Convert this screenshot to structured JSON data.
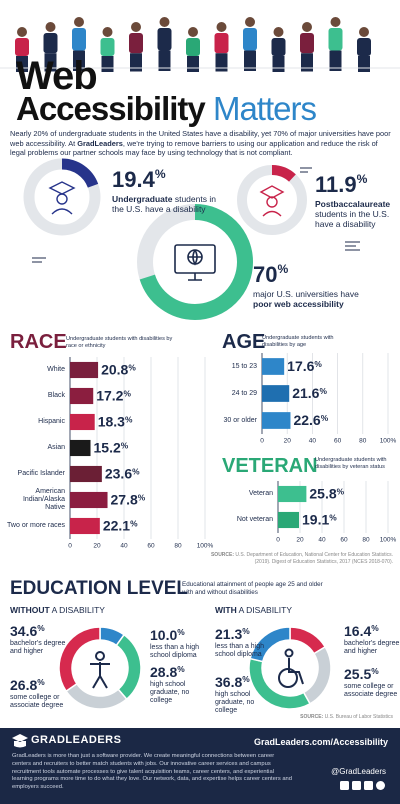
{
  "header": {
    "title_line1": "Web",
    "title_word1": "Accessibility",
    "title_word2": "Matters",
    "intro_1": "Nearly 20% of undergraduate students in the United States have a disability, yet 70% of major universities have poor web accessibility. At",
    "intro_bold": "GradLeaders",
    "intro_2": ", we're trying to remove barriers to using our application and reduce the risk of legal problems our partner schools may face by using technology that is not compliant."
  },
  "stats": [
    {
      "value": 19.4,
      "label": "19.4%",
      "bold": "Undergraduate",
      "text": "students in the U.S. have a disability",
      "color": "#27348b"
    },
    {
      "value": 11.9,
      "label": "11.9%",
      "bold": "Postbaccalaureate",
      "text": "students in the U.S. have a disability",
      "color": "#c8234a"
    },
    {
      "value": 70,
      "label": "70%",
      "text": "major U.S. universities have",
      "bold": "poor web accessibility",
      "color": "#3dbf8f"
    }
  ],
  "chart_data": [
    {
      "type": "bar",
      "orientation": "horizontal",
      "title": "RACE",
      "title_color": "#7a1f3d",
      "subtitle": "Undergraduate students with disabilities by race or ethnicity",
      "categories": [
        "White",
        "Black",
        "Hispanic",
        "Asian",
        "Pacific Islander",
        "American Indian/Alaska Native",
        "Two or more races"
      ],
      "values": [
        20.8,
        17.2,
        18.3,
        15.2,
        23.6,
        27.8,
        22.1
      ],
      "value_labels": [
        "20.8%",
        "17.2%",
        "18.3%",
        "15.2%",
        "23.6%",
        "27.8%",
        "22.1%"
      ],
      "colors": [
        "#7a1f3d",
        "#8b1e3f",
        "#c8234a",
        "#1a1a1a",
        "#6b1f35",
        "#8c1d40",
        "#c8234a"
      ],
      "xlim": [
        0,
        100
      ],
      "xticks": [
        0,
        20,
        40,
        60,
        80,
        {
          "value": 100,
          "label": "100%"
        }
      ],
      "grid": true
    },
    {
      "type": "bar",
      "orientation": "horizontal",
      "title": "AGE",
      "title_color": "#1c2a4a",
      "subtitle": "Undergraduate students with disabilities by age",
      "categories": [
        "15 to 23",
        "24 to 29",
        "30 or older"
      ],
      "values": [
        17.6,
        21.6,
        22.6
      ],
      "value_labels": [
        "17.6%",
        "21.6%",
        "22.6%"
      ],
      "colors": [
        "#2e86c9",
        "#1f6fb0",
        "#2e86c9"
      ],
      "xlim": [
        0,
        100
      ],
      "xticks": [
        0,
        20,
        40,
        60,
        80,
        {
          "value": 100,
          "label": "100%"
        }
      ],
      "grid": true
    },
    {
      "type": "bar",
      "orientation": "horizontal",
      "title": "VETERAN",
      "title_color": "#2aa876",
      "subtitle": "Undergraduate students with disabilities by veteran status",
      "categories": [
        "Veteran",
        "Not veteran"
      ],
      "values": [
        25.8,
        19.1
      ],
      "value_labels": [
        "25.8%",
        "19.1%"
      ],
      "colors": [
        "#3dbf8f",
        "#2aa876"
      ],
      "xlim": [
        0,
        100
      ],
      "xticks": [
        0,
        20,
        40,
        60,
        80,
        {
          "value": 100,
          "label": "100%"
        }
      ],
      "grid": true
    },
    {
      "type": "pie",
      "title_bold": "WITHOUT",
      "title": "A DISABILITY",
      "categories": [
        "less than a high school diploma",
        "high school graduate, no college",
        "some college or associate degree",
        "bachelor's degree and higher"
      ],
      "values": [
        10.0,
        28.8,
        26.8,
        34.6
      ],
      "value_labels": [
        "10.0%",
        "28.8%",
        "26.8%",
        "34.6%"
      ],
      "colors": [
        "#2e86c9",
        "#3dbf8f",
        "#c9d0d6",
        "#d62a4e"
      ]
    },
    {
      "type": "pie",
      "title_bold": "WITH",
      "title": "A DISABILITY",
      "categories": [
        "bachelor's degree and higher",
        "some college or associate degree",
        "high school graduate, no college",
        "less than a high school diploma"
      ],
      "values": [
        16.4,
        25.5,
        36.8,
        21.3
      ],
      "value_labels": [
        "16.4%",
        "25.5%",
        "36.8%",
        "21.3%"
      ],
      "colors": [
        "#d62a4e",
        "#c9d0d6",
        "#3dbf8f",
        "#2e86c9"
      ]
    }
  ],
  "sources": {
    "survey": {
      "label": "SOURCE:",
      "text": "U.S. Department of Education, National Center for Education Statistics. (2019). Digest of Education Statistics, 2017 (NCES 2018-070)."
    },
    "education": {
      "label": "SOURCE:",
      "text": "U.S. Bureau of Labor Statistics"
    }
  },
  "education": {
    "title": "EDUCATION LEVEL",
    "subtitle": "Educational attainment of people age 25 and older with and without disabilities"
  },
  "footer": {
    "logo": "GRADLEADERS",
    "url": "GradLeaders.com/Accessibility",
    "text": "GradLeaders is more than just a software provider. We create meaningful connections between career centers and recruiters to better match students with jobs. Our innovative career services and campus recruitment tools automate processes to give talent acquisition teams, career centers, and experiential learning programs more time to do what they love. Our network, data, and expertise helps career centers and employers succeed.",
    "handle": "@GradLeaders"
  }
}
